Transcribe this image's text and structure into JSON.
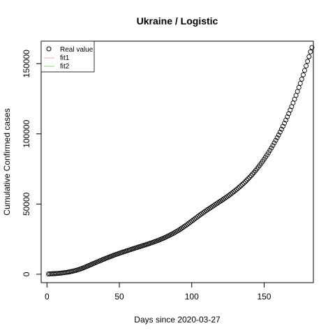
{
  "chart_data": {
    "type": "scatter",
    "title": "Ukraine / Logistic",
    "xlabel": "Days since 2020-03-27",
    "ylabel": "Cumulative Confirmed cases",
    "xlim": [
      -4,
      184
    ],
    "ylim": [
      -6000,
      166000
    ],
    "xticks": [
      0,
      50,
      100,
      150
    ],
    "xtick_labels": [
      "0",
      "50",
      "100",
      "150"
    ],
    "yticks": [
      0,
      50000,
      100000,
      150000
    ],
    "ytick_labels": [
      "0",
      "50000",
      "100000",
      "150000"
    ],
    "grid": false,
    "legend": {
      "placement": "top-left",
      "entries": [
        {
          "label": "Real value",
          "marker": "circle",
          "color": "#000000"
        },
        {
          "label": "fit1",
          "marker": "line",
          "color": "#f4a3b4"
        },
        {
          "label": "fit2",
          "marker": "line",
          "color": "#8fd18f"
        }
      ]
    },
    "series": [
      {
        "name": "Real value",
        "color": "#000000",
        "marker": "circle-open",
        "x_start": 1,
        "x_step": 1,
        "values": [
          200,
          240,
          290,
          340,
          400,
          470,
          550,
          640,
          740,
          850,
          970,
          1100,
          1240,
          1400,
          1580,
          1770,
          1980,
          2210,
          2460,
          2740,
          3040,
          3370,
          3720,
          4090,
          4480,
          4900,
          5330,
          5770,
          6210,
          6660,
          7110,
          7560,
          8010,
          8450,
          8890,
          9330,
          9770,
          10200,
          10620,
          11040,
          11460,
          11870,
          12270,
          12670,
          13060,
          13450,
          13830,
          14200,
          14560,
          14920,
          15270,
          15620,
          15960,
          16300,
          16640,
          16980,
          17320,
          17650,
          17980,
          18310,
          18630,
          18960,
          19290,
          19620,
          19950,
          20280,
          20610,
          20940,
          21270,
          21610,
          21960,
          22310,
          22670,
          23040,
          23420,
          23810,
          24210,
          24620,
          25040,
          25480,
          25930,
          26400,
          26880,
          27380,
          27900,
          28430,
          28980,
          29550,
          30140,
          30750,
          31380,
          32030,
          32700,
          33390,
          34100,
          34820,
          35560,
          36310,
          37070,
          37840,
          38610,
          39390,
          40160,
          40930,
          41690,
          42440,
          43180,
          43910,
          44630,
          45340,
          46040,
          46740,
          47430,
          48110,
          48790,
          49470,
          50140,
          50810,
          51480,
          52160,
          52840,
          53530,
          54230,
          54940,
          55670,
          56410,
          57170,
          57950,
          58750,
          59570,
          60410,
          61270,
          62150,
          63060,
          63990,
          64950,
          65940,
          66960,
          68010,
          69090,
          70200,
          71350,
          72540,
          73760,
          75020,
          76320,
          77660,
          79040,
          80460,
          81930,
          83440,
          85000,
          86600,
          88250,
          89950,
          91700,
          93500,
          95350,
          97250,
          99200,
          101200,
          103260,
          105380,
          107560,
          109800,
          112100,
          114470,
          116910,
          119420,
          122000,
          124650,
          127370,
          130160,
          133020,
          135950,
          138950,
          142020,
          145160,
          148370,
          151650,
          155000,
          158420,
          161500
        ]
      },
      {
        "name": "fit1",
        "color": "#f4a3b4",
        "values": []
      },
      {
        "name": "fit2",
        "color": "#8fd18f",
        "values": []
      }
    ]
  }
}
